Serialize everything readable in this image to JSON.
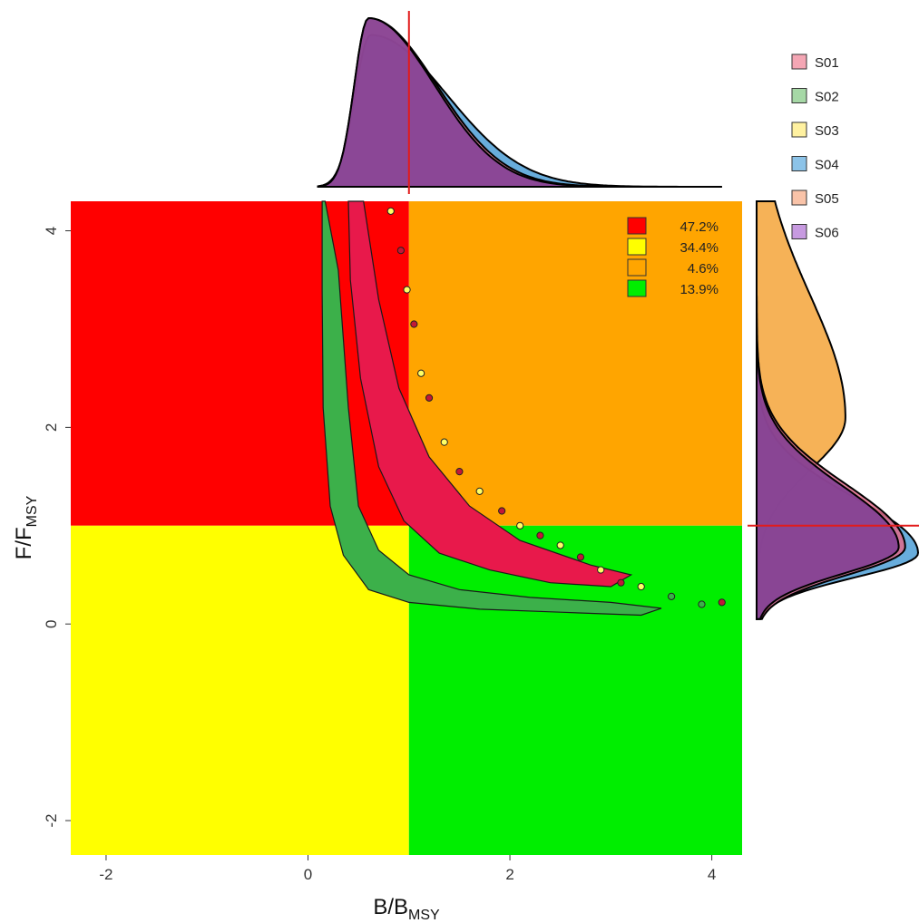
{
  "chart_data": {
    "type": "scatter",
    "xlabel": "B/B",
    "xlabel_sub": "MSY",
    "ylabel": "F/F",
    "ylabel_sub": "MSY",
    "xlim": [
      -2.35,
      4.3
    ],
    "ylim": [
      -2.35,
      4.3
    ],
    "x_ticks": [
      -2,
      0,
      2,
      4
    ],
    "y_ticks": [
      -2,
      0,
      2,
      4
    ],
    "x_tick_labels": [
      "-2",
      "0",
      "2",
      "4"
    ],
    "y_tick_labels": [
      "-2",
      "0",
      "2",
      "4"
    ],
    "reference_lines": {
      "x": 1,
      "y": 1
    },
    "quadrants": [
      {
        "name": "top-left",
        "color": "#ff0000",
        "x": [
          -2.35,
          1
        ],
        "y": [
          1,
          4.3
        ]
      },
      {
        "name": "top-right",
        "color": "#ffa500",
        "x": [
          1,
          4.3
        ],
        "y": [
          1,
          4.3
        ]
      },
      {
        "name": "bottom-left",
        "color": "#ffff00",
        "x": [
          -2.35,
          1
        ],
        "y": [
          -2.35,
          1
        ]
      },
      {
        "name": "bottom-right",
        "color": "#00ee00",
        "x": [
          1,
          4.3
        ],
        "y": [
          -2.35,
          1
        ]
      }
    ],
    "quadrant_percentages": [
      {
        "label": "47.2%",
        "color": "#ff0000"
      },
      {
        "label": "34.4%",
        "color": "#ffff00"
      },
      {
        "label": "4.6%",
        "color": "#ffa500"
      },
      {
        "label": "13.9%",
        "color": "#00ee00"
      }
    ],
    "series": [
      {
        "name": "S01",
        "fill": "#f4a6b4"
      },
      {
        "name": "S02",
        "fill": "#a6d8a6"
      },
      {
        "name": "S03",
        "fill": "#fff1a0"
      },
      {
        "name": "S04",
        "fill": "#8cc3e8"
      },
      {
        "name": "S05",
        "fill": "#f9c3a8"
      },
      {
        "name": "S06",
        "fill": "#c79ae0"
      }
    ],
    "clouds": [
      {
        "name": "green-cloud",
        "color": "#3cb04a",
        "points": [
          [
            0.17,
            4.3
          ],
          [
            0.3,
            3.6
          ],
          [
            0.4,
            2.2
          ],
          [
            0.5,
            1.2
          ],
          [
            0.7,
            0.75
          ],
          [
            1.0,
            0.5
          ],
          [
            1.5,
            0.35
          ],
          [
            2.2,
            0.27
          ],
          [
            3.0,
            0.22
          ],
          [
            3.5,
            0.16
          ],
          [
            3.3,
            0.09
          ],
          [
            2.5,
            0.12
          ],
          [
            1.7,
            0.15
          ],
          [
            1.0,
            0.22
          ],
          [
            0.6,
            0.35
          ],
          [
            0.35,
            0.7
          ],
          [
            0.22,
            1.2
          ],
          [
            0.15,
            2.2
          ],
          [
            0.14,
            3.4
          ],
          [
            0.14,
            4.3
          ]
        ]
      },
      {
        "name": "red-cloud",
        "color": "#e8194b",
        "points": [
          [
            0.55,
            4.3
          ],
          [
            0.7,
            3.3
          ],
          [
            0.9,
            2.4
          ],
          [
            1.2,
            1.7
          ],
          [
            1.6,
            1.2
          ],
          [
            2.1,
            0.85
          ],
          [
            2.8,
            0.6
          ],
          [
            3.2,
            0.5
          ],
          [
            3.0,
            0.38
          ],
          [
            2.4,
            0.42
          ],
          [
            1.8,
            0.55
          ],
          [
            1.3,
            0.72
          ],
          [
            0.95,
            1.05
          ],
          [
            0.7,
            1.6
          ],
          [
            0.52,
            2.5
          ],
          [
            0.42,
            3.5
          ],
          [
            0.4,
            4.3
          ]
        ]
      }
    ],
    "outliers": [
      {
        "x": 1.05,
        "y": 3.05,
        "c": "#c21838"
      },
      {
        "x": 1.12,
        "y": 2.55,
        "c": "#ffff66"
      },
      {
        "x": 1.2,
        "y": 2.3,
        "c": "#c21838"
      },
      {
        "x": 1.35,
        "y": 1.85,
        "c": "#ffff66"
      },
      {
        "x": 1.5,
        "y": 1.55,
        "c": "#c21838"
      },
      {
        "x": 1.7,
        "y": 1.35,
        "c": "#ffff66"
      },
      {
        "x": 1.92,
        "y": 1.15,
        "c": "#c21838"
      },
      {
        "x": 2.1,
        "y": 1.0,
        "c": "#ffff66"
      },
      {
        "x": 2.3,
        "y": 0.9,
        "c": "#c21838"
      },
      {
        "x": 2.5,
        "y": 0.8,
        "c": "#ffff66"
      },
      {
        "x": 2.7,
        "y": 0.68,
        "c": "#c21838"
      },
      {
        "x": 2.9,
        "y": 0.55,
        "c": "#ffff66"
      },
      {
        "x": 3.1,
        "y": 0.42,
        "c": "#c21838"
      },
      {
        "x": 3.3,
        "y": 0.38,
        "c": "#ffff66"
      },
      {
        "x": 3.6,
        "y": 0.28,
        "c": "#3cb04a"
      },
      {
        "x": 3.9,
        "y": 0.2,
        "c": "#3cb04a"
      },
      {
        "x": 4.1,
        "y": 0.22,
        "c": "#c21838"
      },
      {
        "x": 0.82,
        "y": 4.2,
        "c": "#ffff66"
      },
      {
        "x": 0.92,
        "y": 3.8,
        "c": "#c21838"
      },
      {
        "x": 0.98,
        "y": 3.4,
        "c": "#ffff66"
      }
    ],
    "top_marginal": [
      {
        "name": "S04",
        "color": "#4d9fd6",
        "peak": 0.62,
        "w": 0.22,
        "tail": 0.85,
        "h": 0.9
      },
      {
        "name": "S01",
        "color": "#f07a93",
        "peak": 0.6,
        "w": 0.2,
        "tail": 0.75,
        "h": 1.0
      },
      {
        "name": "S06",
        "color": "#7d3d94",
        "peak": 0.6,
        "w": 0.2,
        "tail": 0.72,
        "h": 1.0
      }
    ],
    "right_marginal": [
      {
        "name": "S03",
        "color": "#f5a43a",
        "peak": 2.1,
        "w": 0.75,
        "tail": 1.0,
        "h": 0.55
      },
      {
        "name": "S04",
        "color": "#4d9fd6",
        "peak": 0.72,
        "w": 0.35,
        "tail": 0.45,
        "h": 1.0
      },
      {
        "name": "S01",
        "color": "#e06a8a",
        "peak": 0.78,
        "w": 0.4,
        "tail": 0.5,
        "h": 0.92
      },
      {
        "name": "S06",
        "color": "#7d3d94",
        "peak": 0.78,
        "w": 0.38,
        "tail": 0.5,
        "h": 0.88
      }
    ]
  }
}
